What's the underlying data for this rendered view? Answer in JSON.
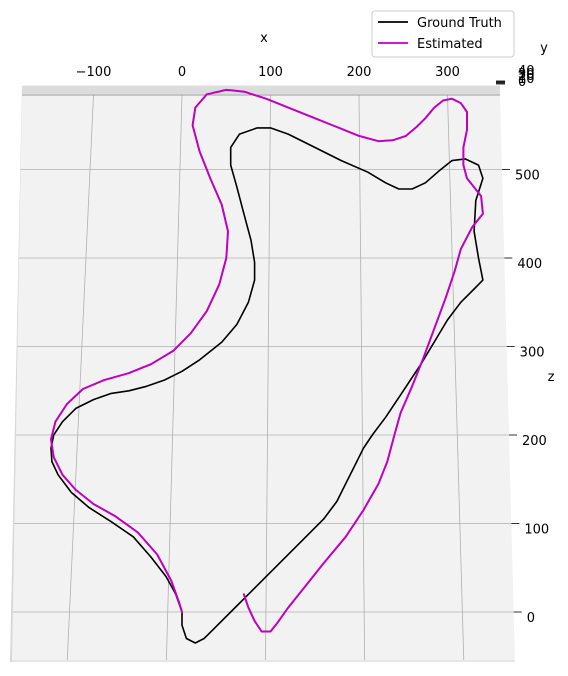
{
  "chart_data": {
    "type": "line",
    "projection": "3d",
    "xlabel": "x",
    "ylabel": "y",
    "zlabel": "z",
    "x_ticks": [
      -100,
      0,
      100,
      200,
      300
    ],
    "z_ticks": [
      0,
      100,
      200,
      300,
      400,
      500
    ],
    "y_ticks": [
      0,
      10,
      20,
      30,
      40
    ],
    "x_range": [
      -180,
      370
    ],
    "z_range": [
      -50,
      600
    ],
    "grid": true,
    "legend_position": "top-right",
    "series": [
      {
        "name": "Ground Truth",
        "color": "#000000",
        "points": [
          [
            0,
            0
          ],
          [
            0,
            -15
          ],
          [
            5,
            -30
          ],
          [
            15,
            -35
          ],
          [
            25,
            -30
          ],
          [
            35,
            -20
          ],
          [
            55,
            0
          ],
          [
            80,
            25
          ],
          [
            110,
            55
          ],
          [
            140,
            85
          ],
          [
            160,
            105
          ],
          [
            175,
            125
          ],
          [
            185,
            145
          ],
          [
            195,
            165
          ],
          [
            205,
            185
          ],
          [
            215,
            200
          ],
          [
            230,
            220
          ],
          [
            250,
            250
          ],
          [
            270,
            280
          ],
          [
            285,
            305
          ],
          [
            300,
            330
          ],
          [
            315,
            350
          ],
          [
            330,
            365
          ],
          [
            340,
            375
          ],
          [
            335,
            400
          ],
          [
            330,
            430
          ],
          [
            332,
            465
          ],
          [
            340,
            490
          ],
          [
            335,
            505
          ],
          [
            320,
            512
          ],
          [
            305,
            510
          ],
          [
            290,
            498
          ],
          [
            275,
            485
          ],
          [
            260,
            478
          ],
          [
            245,
            478
          ],
          [
            230,
            485
          ],
          [
            210,
            497
          ],
          [
            180,
            510
          ],
          [
            150,
            525
          ],
          [
            120,
            540
          ],
          [
            100,
            547
          ],
          [
            85,
            547
          ],
          [
            65,
            540
          ],
          [
            55,
            525
          ],
          [
            55,
            505
          ],
          [
            62,
            480
          ],
          [
            70,
            450
          ],
          [
            78,
            420
          ],
          [
            82,
            395
          ],
          [
            82,
            375
          ],
          [
            75,
            350
          ],
          [
            62,
            325
          ],
          [
            45,
            305
          ],
          [
            20,
            285
          ],
          [
            0,
            272
          ],
          [
            -20,
            262
          ],
          [
            -40,
            255
          ],
          [
            -60,
            250
          ],
          [
            -80,
            247
          ],
          [
            -100,
            240
          ],
          [
            -120,
            230
          ],
          [
            -135,
            215
          ],
          [
            -145,
            200
          ],
          [
            -148,
            185
          ],
          [
            -147,
            170
          ],
          [
            -140,
            155
          ],
          [
            -125,
            135
          ],
          [
            -105,
            118
          ],
          [
            -80,
            102
          ],
          [
            -55,
            85
          ],
          [
            -35,
            62
          ],
          [
            -18,
            40
          ],
          [
            -7,
            20
          ],
          [
            0,
            0
          ]
        ]
      },
      {
        "name": "Estimated",
        "color": "#bf00bf",
        "points": [
          [
            70,
            20
          ],
          [
            75,
            5
          ],
          [
            82,
            -10
          ],
          [
            90,
            -22
          ],
          [
            100,
            -22
          ],
          [
            108,
            -12
          ],
          [
            120,
            5
          ],
          [
            140,
            30
          ],
          [
            160,
            55
          ],
          [
            185,
            85
          ],
          [
            205,
            115
          ],
          [
            222,
            145
          ],
          [
            232,
            170
          ],
          [
            240,
            200
          ],
          [
            247,
            225
          ],
          [
            260,
            255
          ],
          [
            272,
            285
          ],
          [
            285,
            320
          ],
          [
            298,
            355
          ],
          [
            308,
            385
          ],
          [
            315,
            410
          ],
          [
            328,
            435
          ],
          [
            340,
            450
          ],
          [
            338,
            470
          ],
          [
            330,
            480
          ],
          [
            322,
            490
          ],
          [
            318,
            505
          ],
          [
            318,
            525
          ],
          [
            322,
            545
          ],
          [
            322,
            565
          ],
          [
            315,
            575
          ],
          [
            305,
            580
          ],
          [
            295,
            578
          ],
          [
            285,
            570
          ],
          [
            275,
            558
          ],
          [
            265,
            548
          ],
          [
            253,
            538
          ],
          [
            238,
            533
          ],
          [
            222,
            532
          ],
          [
            200,
            538
          ],
          [
            175,
            548
          ],
          [
            150,
            558
          ],
          [
            125,
            568
          ],
          [
            95,
            580
          ],
          [
            70,
            588
          ],
          [
            50,
            590
          ],
          [
            28,
            585
          ],
          [
            15,
            570
          ],
          [
            12,
            550
          ],
          [
            20,
            520
          ],
          [
            32,
            490
          ],
          [
            45,
            460
          ],
          [
            52,
            430
          ],
          [
            50,
            400
          ],
          [
            42,
            370
          ],
          [
            28,
            340
          ],
          [
            10,
            315
          ],
          [
            -10,
            295
          ],
          [
            -35,
            280
          ],
          [
            -60,
            270
          ],
          [
            -88,
            262
          ],
          [
            -112,
            252
          ],
          [
            -130,
            235
          ],
          [
            -143,
            215
          ],
          [
            -148,
            195
          ],
          [
            -145,
            175
          ],
          [
            -135,
            155
          ],
          [
            -120,
            138
          ],
          [
            -100,
            122
          ],
          [
            -75,
            108
          ],
          [
            -50,
            90
          ],
          [
            -28,
            65
          ],
          [
            -12,
            35
          ],
          [
            -3,
            10
          ],
          [
            0,
            0
          ]
        ]
      }
    ]
  }
}
